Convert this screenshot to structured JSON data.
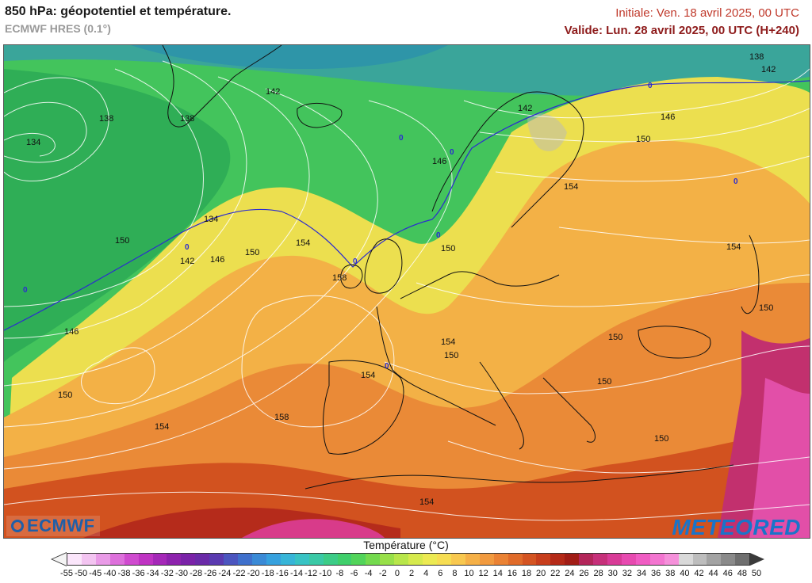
{
  "header": {
    "title": "850 hPa: géopotentiel et température.",
    "model": "ECMWF HRES (0.1°)",
    "initial": "Initiale: Ven. 18 avril 2025, 00 UTC",
    "valid": "Valide: Lun. 28 avril 2025, 00 UTC (H+240)"
  },
  "map": {
    "contour_labels": [
      {
        "text": "138"
      },
      {
        "text": "142"
      },
      {
        "text": "146"
      },
      {
        "text": "150"
      },
      {
        "text": "134"
      },
      {
        "text": "138"
      },
      {
        "text": "134"
      },
      {
        "text": "142"
      },
      {
        "text": "146"
      },
      {
        "text": "150"
      },
      {
        "text": "154"
      },
      {
        "text": "158"
      },
      {
        "text": "142"
      },
      {
        "text": "146"
      },
      {
        "text": "150"
      },
      {
        "text": "154"
      },
      {
        "text": "150"
      },
      {
        "text": "154"
      },
      {
        "text": "150"
      },
      {
        "text": "154"
      },
      {
        "text": "150"
      },
      {
        "text": "150"
      },
      {
        "text": "154"
      },
      {
        "text": "150"
      },
      {
        "text": "146"
      },
      {
        "text": "150"
      },
      {
        "text": "154"
      },
      {
        "text": "158"
      },
      {
        "text": "154"
      },
      {
        "text": "138"
      },
      {
        "text": "142"
      },
      {
        "text": "150"
      }
    ],
    "zero_labels": [
      "0",
      "0",
      "0",
      "0",
      "0",
      "0",
      "0",
      "0",
      "0"
    ]
  },
  "logos": {
    "left": "ECMWF",
    "right": "METEORED"
  },
  "legend": {
    "title": "Température (°C)",
    "ticks": [
      "-55",
      "-50",
      "-45",
      "-40",
      "-38",
      "-36",
      "-34",
      "-32",
      "-30",
      "-28",
      "-26",
      "-24",
      "-22",
      "-20",
      "-18",
      "-16",
      "-14",
      "-12",
      "-10",
      "-8",
      "-6",
      "-4",
      "-2",
      "0",
      "2",
      "4",
      "6",
      "8",
      "10",
      "12",
      "14",
      "16",
      "18",
      "20",
      "22",
      "24",
      "26",
      "28",
      "30",
      "32",
      "34",
      "36",
      "38",
      "40",
      "42",
      "44",
      "46",
      "48",
      "50"
    ],
    "colors": [
      "#fbe6fb",
      "#f3c4f1",
      "#e99be7",
      "#dd70db",
      "#cf4bcf",
      "#bf33c3",
      "#a528b8",
      "#8d22ad",
      "#7a22a8",
      "#6a2aa8",
      "#5a3ab0",
      "#4b55bf",
      "#3f70cc",
      "#3a8ad6",
      "#36a1de",
      "#37b5d8",
      "#38c3c4",
      "#3ac9a6",
      "#3ccc87",
      "#3fcf6b",
      "#52d45a",
      "#74da4e",
      "#98e049",
      "#b8e64a",
      "#d6ea4d",
      "#ecea52",
      "#f6dd52",
      "#f8c84f",
      "#f5b047",
      "#f19a3f",
      "#ea8234",
      "#e06b2a",
      "#d45422",
      "#c73e1c",
      "#b52a18",
      "#a11d16",
      "#b3265a",
      "#c6307a",
      "#d83b97",
      "#e74ab0",
      "#f05cc3",
      "#f375d0",
      "#f590da",
      "#d9d9d9",
      "#bdbdbd",
      "#a3a3a3",
      "#8a8a8a",
      "#6f6f6f"
    ],
    "colors_note_count": 48
  }
}
